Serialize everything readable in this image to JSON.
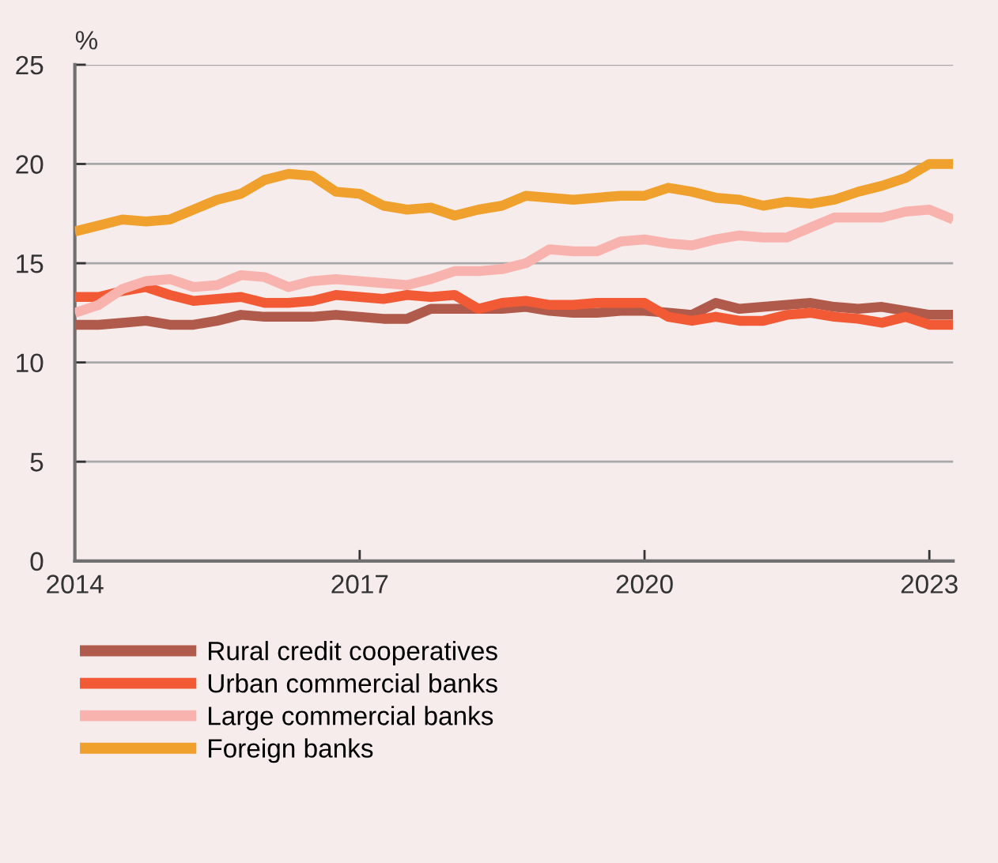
{
  "chart_data": {
    "type": "line",
    "ylabel": "%",
    "xlim": [
      2014,
      2023.25
    ],
    "xticks": [
      {
        "value": 2014,
        "label": "2014"
      },
      {
        "value": 2017,
        "label": "2017"
      },
      {
        "value": 2020,
        "label": "2020"
      },
      {
        "value": 2023,
        "label": "2023"
      }
    ],
    "ylim": [
      0,
      25
    ],
    "yticks": [
      0,
      5,
      10,
      15,
      20,
      25
    ],
    "grid": "y",
    "legend": "bottom",
    "marker": "none",
    "line_style": "solid",
    "x": [
      2014,
      2014.25,
      2014.5,
      2014.75,
      2015,
      2015.25,
      2015.5,
      2015.75,
      2016,
      2016.25,
      2016.5,
      2016.75,
      2017,
      2017.25,
      2017.5,
      2017.75,
      2018,
      2018.25,
      2018.5,
      2018.75,
      2019,
      2019.25,
      2019.5,
      2019.75,
      2020,
      2020.25,
      2020.5,
      2020.75,
      2021,
      2021.25,
      2021.5,
      2021.75,
      2022,
      2022.25,
      2022.5,
      2022.75,
      2023,
      2023.25
    ],
    "series": [
      {
        "name": "Rural credit cooperatives",
        "color": "#b05a4b",
        "values": [
          11.9,
          11.9,
          12.0,
          12.1,
          11.9,
          11.9,
          12.1,
          12.4,
          12.3,
          12.3,
          12.3,
          12.4,
          12.3,
          12.2,
          12.2,
          12.7,
          12.7,
          12.7,
          12.7,
          12.8,
          12.6,
          12.5,
          12.5,
          12.6,
          12.6,
          12.5,
          12.4,
          13.0,
          12.7,
          12.8,
          12.9,
          13.0,
          12.8,
          12.7,
          12.8,
          12.6,
          12.4,
          12.4
        ]
      },
      {
        "name": "Urban commercial banks",
        "color": "#f15a35",
        "values": [
          13.3,
          13.3,
          13.6,
          13.8,
          13.4,
          13.1,
          13.2,
          13.3,
          13.0,
          13.0,
          13.1,
          13.4,
          13.3,
          13.2,
          13.4,
          13.3,
          13.4,
          12.7,
          13.0,
          13.1,
          12.9,
          12.9,
          13.0,
          13.0,
          13.0,
          12.3,
          12.1,
          12.3,
          12.1,
          12.1,
          12.4,
          12.5,
          12.3,
          12.2,
          12.0,
          12.3,
          11.9,
          11.9
        ]
      },
      {
        "name": "Large commercial banks",
        "color": "#f9b3ae",
        "values": [
          12.5,
          12.9,
          13.7,
          14.1,
          14.2,
          13.8,
          13.9,
          14.4,
          14.3,
          13.8,
          14.1,
          14.2,
          14.1,
          14.0,
          13.9,
          14.2,
          14.6,
          14.6,
          14.7,
          15.0,
          15.7,
          15.6,
          15.6,
          16.1,
          16.2,
          16.0,
          15.9,
          16.2,
          16.4,
          16.3,
          16.3,
          16.8,
          17.3,
          17.3,
          17.3,
          17.6,
          17.7,
          17.2
        ]
      },
      {
        "name": "Foreign banks",
        "color": "#f0a02c",
        "values": [
          16.6,
          16.9,
          17.2,
          17.1,
          17.2,
          17.7,
          18.2,
          18.5,
          19.2,
          19.5,
          19.4,
          18.6,
          18.5,
          17.9,
          17.7,
          17.8,
          17.4,
          17.7,
          17.9,
          18.4,
          18.3,
          18.2,
          18.3,
          18.4,
          18.4,
          18.8,
          18.6,
          18.3,
          18.2,
          17.9,
          18.1,
          18.0,
          18.2,
          18.6,
          18.9,
          19.3,
          20.0,
          20.0
        ]
      }
    ]
  }
}
